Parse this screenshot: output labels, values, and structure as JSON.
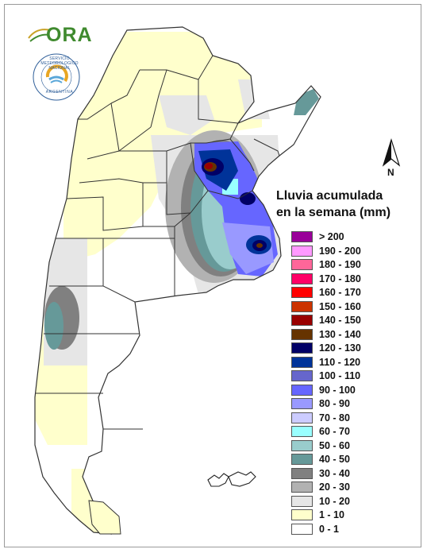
{
  "map": {
    "country": "Argentina",
    "legend_title": [
      "Lluvia acumulada",
      "en la semana (mm)"
    ],
    "north_label": "N",
    "legend": [
      {
        "label": "> 200",
        "color": "#990099"
      },
      {
        "label": "190 - 200",
        "color": "#ff99ff"
      },
      {
        "label": "180 - 190",
        "color": "#ff6699"
      },
      {
        "label": "170 - 180",
        "color": "#ff0066"
      },
      {
        "label": "160 - 170",
        "color": "#ff0000"
      },
      {
        "label": "150 - 160",
        "color": "#cc3300"
      },
      {
        "label": "140 - 150",
        "color": "#990000"
      },
      {
        "label": "130 - 140",
        "color": "#663300"
      },
      {
        "label": "120 - 130",
        "color": "#000066"
      },
      {
        "label": "110 - 120",
        "color": "#003399"
      },
      {
        "label": "100 - 110",
        "color": "#6666cc"
      },
      {
        "label": "90 - 100",
        "color": "#6666ff"
      },
      {
        "label": "80 - 90",
        "color": "#9999ff"
      },
      {
        "label": "70 - 80",
        "color": "#ccccff"
      },
      {
        "label": "60 - 70",
        "color": "#99ffff"
      },
      {
        "label": "50 - 60",
        "color": "#99cccc"
      },
      {
        "label": "40 - 50",
        "color": "#669999"
      },
      {
        "label": "30 - 40",
        "color": "#808080"
      },
      {
        "label": "20 - 30",
        "color": "#b2b2b2"
      },
      {
        "label": "10 - 20",
        "color": "#e6e6e6"
      },
      {
        "label": "1 - 10",
        "color": "#ffffcc"
      },
      {
        "label": "0 - 1",
        "color": "#ffffff"
      }
    ]
  },
  "logos": {
    "ora": {
      "text": "ORA",
      "color": "#3f8a2e"
    },
    "smn": {
      "ring_top": "SERVICIO METEOROLOGICO NACIONAL",
      "ring_bottom": "ARGENTINA"
    }
  }
}
